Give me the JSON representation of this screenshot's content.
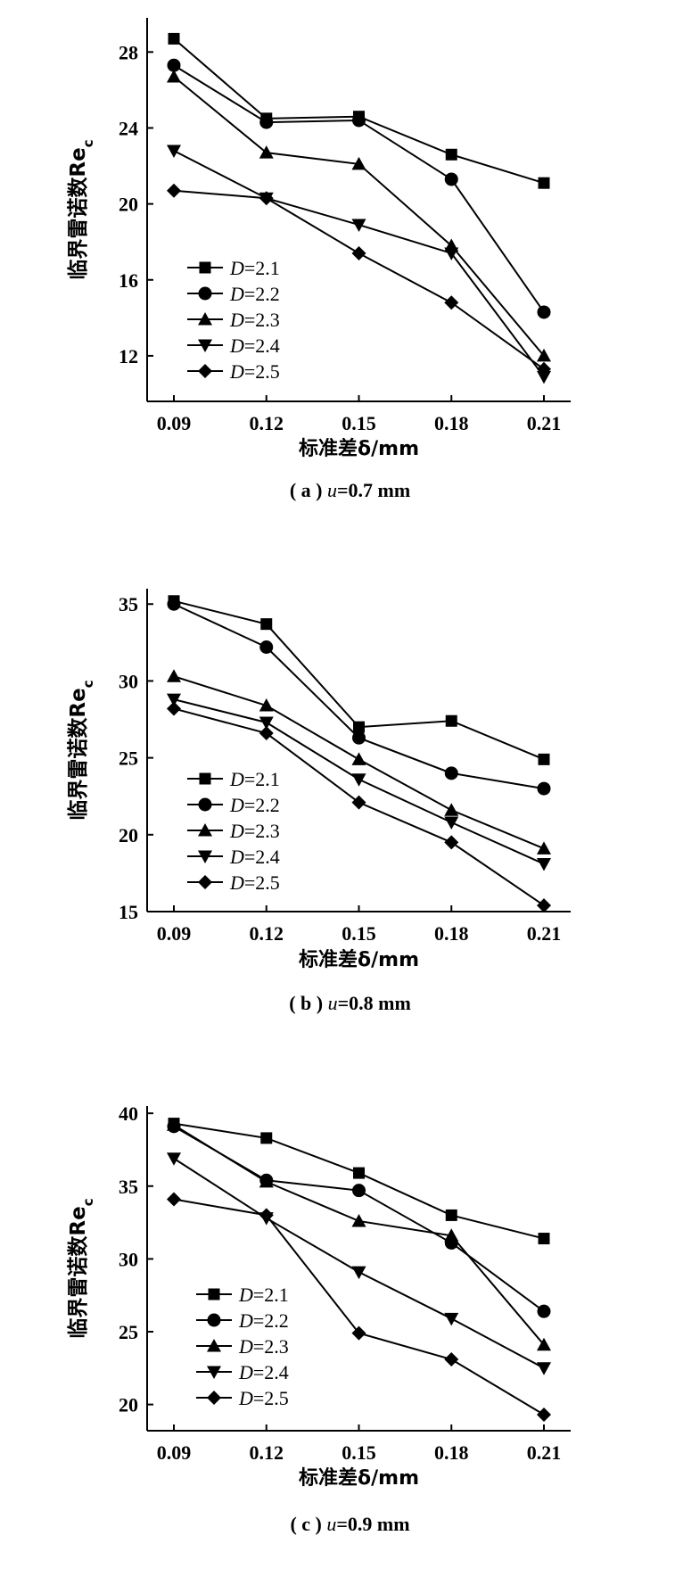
{
  "chart_data": [
    {
      "type": "line",
      "panel": "a",
      "caption_prefix": "( a )",
      "caption_var": "u",
      "caption_rest": "=0.7 mm",
      "xlabel": "标准差δ/mm",
      "ylabel": "临界雷诺数Re",
      "ylabel_sub": "c",
      "x": [
        0.09,
        0.12,
        0.15,
        0.18,
        0.21
      ],
      "x_tick_labels": [
        "0.09",
        "0.12",
        "0.15",
        "0.18",
        "0.21"
      ],
      "ylim": [
        9.6,
        29.8
      ],
      "y_ticks": [
        12,
        16,
        20,
        24,
        28
      ],
      "legend_position": "lower-left",
      "series": [
        {
          "name": "D=2.1",
          "marker": "square",
          "values": [
            28.7,
            24.5,
            24.6,
            22.6,
            21.1
          ]
        },
        {
          "name": "D=2.2",
          "marker": "circle",
          "values": [
            27.3,
            24.3,
            24.4,
            21.3,
            14.3
          ]
        },
        {
          "name": "D=2.3",
          "marker": "triangle-up",
          "values": [
            26.7,
            22.7,
            22.1,
            17.8,
            12.0
          ]
        },
        {
          "name": "D=2.4",
          "marker": "triangle-down",
          "values": [
            22.8,
            20.3,
            18.9,
            17.4,
            10.9
          ]
        },
        {
          "name": "D=2.5",
          "marker": "diamond",
          "values": [
            20.7,
            20.3,
            17.4,
            14.8,
            11.3
          ]
        }
      ]
    },
    {
      "type": "line",
      "panel": "b",
      "caption_prefix": "( b )",
      "caption_var": "u",
      "caption_rest": "=0.8 mm",
      "xlabel": "标准差δ/mm",
      "ylabel": "临界雷诺数Re",
      "ylabel_sub": "c",
      "x": [
        0.09,
        0.12,
        0.15,
        0.18,
        0.21
      ],
      "x_tick_labels": [
        "0.09",
        "0.12",
        "0.15",
        "0.18",
        "0.21"
      ],
      "ylim": [
        15,
        36
      ],
      "y_ticks": [
        15,
        20,
        25,
        30,
        35
      ],
      "legend_position": "lower-left",
      "series": [
        {
          "name": "D=2.1",
          "marker": "square",
          "values": [
            35.2,
            33.7,
            27.0,
            27.4,
            24.9
          ]
        },
        {
          "name": "D=2.2",
          "marker": "circle",
          "values": [
            35.0,
            32.2,
            26.3,
            24.0,
            23.0
          ]
        },
        {
          "name": "D=2.3",
          "marker": "triangle-up",
          "values": [
            30.3,
            28.4,
            24.9,
            21.6,
            19.1
          ]
        },
        {
          "name": "D=2.4",
          "marker": "triangle-down",
          "values": [
            28.8,
            27.3,
            23.6,
            20.8,
            18.1
          ]
        },
        {
          "name": "D=2.5",
          "marker": "diamond",
          "values": [
            28.2,
            26.6,
            22.1,
            19.5,
            15.4
          ]
        }
      ]
    },
    {
      "type": "line",
      "panel": "c",
      "caption_prefix": "( c )",
      "caption_var": "u",
      "caption_rest": "=0.9 mm",
      "xlabel": "标准差δ/mm",
      "ylabel": "临界雷诺数Re",
      "ylabel_sub": "c",
      "x": [
        0.09,
        0.12,
        0.15,
        0.18,
        0.21
      ],
      "x_tick_labels": [
        "0.09",
        "0.12",
        "0.15",
        "0.18",
        "0.21"
      ],
      "ylim": [
        18.2,
        40.5
      ],
      "y_ticks": [
        20,
        25,
        30,
        35,
        40
      ],
      "legend_position": "lower-left",
      "series": [
        {
          "name": "D=2.1",
          "marker": "square",
          "values": [
            39.3,
            38.3,
            35.9,
            33.0,
            31.4
          ]
        },
        {
          "name": "D=2.2",
          "marker": "circle",
          "values": [
            39.1,
            35.4,
            34.7,
            31.1,
            26.4
          ]
        },
        {
          "name": "D=2.3",
          "marker": "triangle-up",
          "values": [
            39.2,
            35.3,
            32.6,
            31.6,
            24.1
          ]
        },
        {
          "name": "D=2.4",
          "marker": "triangle-down",
          "values": [
            36.9,
            32.8,
            29.1,
            25.9,
            22.5
          ]
        },
        {
          "name": "D=2.5",
          "marker": "diamond",
          "values": [
            34.1,
            33.0,
            24.9,
            23.1,
            19.3
          ]
        }
      ]
    }
  ]
}
